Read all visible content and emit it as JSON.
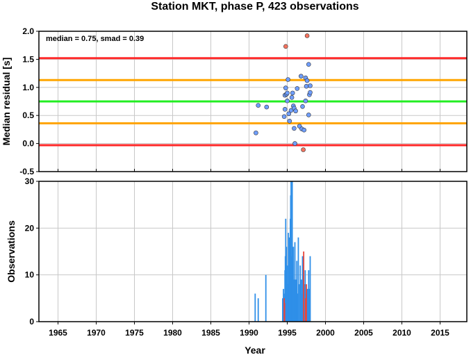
{
  "chart_data": [
    {
      "type": "scatter",
      "title": "Station MKT, phase P, 423 observations",
      "ylabel": "Median residual [s]",
      "xlim": [
        1962.5,
        2018.5
      ],
      "ylim": [
        -0.5,
        2.0
      ],
      "y_ticks": [
        "-0.5",
        "0.0",
        "0.5",
        "1.0",
        "1.5",
        "2.0"
      ],
      "annotation": "median = 0.75, smad = 0.39",
      "grid": true,
      "reference_lines": [
        {
          "y": 1.52,
          "color": "#ff2a2a"
        },
        {
          "y": 1.13,
          "color": "#ffa500"
        },
        {
          "y": 0.75,
          "color": "#22ee22"
        },
        {
          "y": 0.36,
          "color": "#ffa500"
        },
        {
          "y": -0.03,
          "color": "#ff2a2a"
        }
      ],
      "series": [
        {
          "color": "#6f9eff",
          "points": [
            [
              1990.9,
              0.19
            ],
            [
              1991.2,
              0.68
            ],
            [
              1992.3,
              0.65
            ],
            [
              1994.6,
              0.48
            ],
            [
              1994.7,
              0.61
            ],
            [
              1994.7,
              0.86
            ],
            [
              1994.8,
              0.99
            ],
            [
              1994.9,
              0.88
            ],
            [
              1995.0,
              0.9
            ],
            [
              1995.0,
              0.76
            ],
            [
              1995.1,
              1.14
            ],
            [
              1995.2,
              0.53
            ],
            [
              1995.3,
              0.4
            ],
            [
              1995.5,
              0.59
            ],
            [
              1995.6,
              0.82
            ],
            [
              1995.7,
              0.9
            ],
            [
              1995.8,
              0.67
            ],
            [
              1995.9,
              0.27
            ],
            [
              1995.9,
              0.63
            ],
            [
              1996.0,
              0.0
            ],
            [
              1996.1,
              0.58
            ],
            [
              1996.3,
              0.98
            ],
            [
              1996.6,
              0.31
            ],
            [
              1996.8,
              1.2
            ],
            [
              1996.9,
              0.26
            ],
            [
              1997.0,
              0.66
            ],
            [
              1997.2,
              0.24
            ],
            [
              1997.4,
              0.76
            ],
            [
              1997.4,
              1.17
            ],
            [
              1997.5,
              1.02
            ],
            [
              1997.6,
              1.12
            ],
            [
              1997.8,
              0.51
            ],
            [
              1997.8,
              1.41
            ],
            [
              1997.9,
              0.87
            ],
            [
              1998.0,
              1.03
            ],
            [
              1998.0,
              0.91
            ]
          ]
        },
        {
          "color": "#f4735f",
          "points": [
            [
              1994.8,
              1.73
            ],
            [
              1997.1,
              -0.11
            ],
            [
              1997.6,
              1.92
            ]
          ]
        }
      ]
    },
    {
      "type": "bar",
      "xlabel": "Year",
      "ylabel": "Observations",
      "xlim": [
        1962.5,
        2018.5
      ],
      "ylim": [
        0,
        30
      ],
      "x_ticks": [
        "1965",
        "1970",
        "1975",
        "1980",
        "1985",
        "1990",
        "1995",
        "2000",
        "2005",
        "2010",
        "2015"
      ],
      "y_ticks": [
        "0",
        "10",
        "20",
        "30"
      ],
      "grid": true,
      "series": [
        {
          "color": "#2f8fe8",
          "bars": [
            [
              1990.8,
              6
            ],
            [
              1991.2,
              5
            ],
            [
              1992.2,
              10
            ],
            [
              1994.4,
              5
            ],
            [
              1994.5,
              7
            ],
            [
              1994.55,
              6
            ],
            [
              1994.7,
              11
            ],
            [
              1994.75,
              14
            ],
            [
              1994.8,
              22
            ],
            [
              1994.9,
              16
            ],
            [
              1995.0,
              12
            ],
            [
              1995.05,
              8
            ],
            [
              1995.15,
              19
            ],
            [
              1995.25,
              18
            ],
            [
              1995.3,
              8
            ],
            [
              1995.4,
              22
            ],
            [
              1995.45,
              27
            ],
            [
              1995.5,
              30
            ],
            [
              1995.6,
              14
            ],
            [
              1995.65,
              30
            ],
            [
              1995.75,
              12
            ],
            [
              1995.8,
              16
            ],
            [
              1995.9,
              9
            ],
            [
              1996.0,
              17
            ],
            [
              1996.1,
              9
            ],
            [
              1996.15,
              7
            ],
            [
              1996.25,
              13
            ],
            [
              1996.3,
              6
            ],
            [
              1996.4,
              6
            ],
            [
              1996.45,
              18
            ],
            [
              1996.6,
              8
            ],
            [
              1996.7,
              12
            ],
            [
              1996.8,
              5
            ],
            [
              1996.85,
              9
            ],
            [
              1996.95,
              6
            ],
            [
              1997.0,
              14
            ],
            [
              1997.05,
              11
            ],
            [
              1997.1,
              9
            ],
            [
              1997.2,
              8
            ],
            [
              1997.3,
              6
            ],
            [
              1997.35,
              11
            ],
            [
              1997.45,
              6
            ],
            [
              1997.55,
              6
            ],
            [
              1997.6,
              7
            ],
            [
              1997.7,
              7
            ],
            [
              1997.8,
              11
            ],
            [
              1997.9,
              7
            ],
            [
              1998.0,
              14
            ]
          ]
        },
        {
          "color": "#e8453a",
          "bars": [
            [
              1994.6,
              5
            ],
            [
              1994.65,
              4
            ],
            [
              1997.15,
              15
            ],
            [
              1997.4,
              5
            ],
            [
              1997.5,
              8
            ]
          ]
        }
      ]
    }
  ]
}
